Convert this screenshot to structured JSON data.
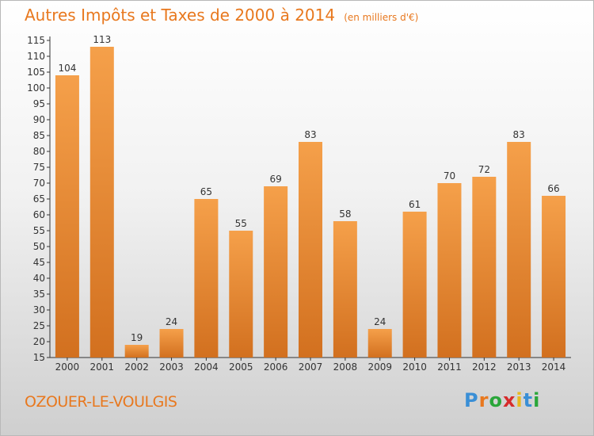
{
  "title": "Autres Impôts et Taxes de 2000 à 2014",
  "subtitle": "(en milliers d'€)",
  "place": "OZOUER-LE-VOULGIS",
  "logo": {
    "letters": [
      "P",
      "r",
      "o",
      "x",
      "i",
      "t",
      "i"
    ],
    "colors": [
      "#3a8fd6",
      "#e8781e",
      "#2aa63a",
      "#d62b2b",
      "#e8b81e",
      "#3a8fd6",
      "#2aa63a"
    ]
  },
  "colors": {
    "bar_light": "#f5a04a",
    "bar_dark": "#d2701f",
    "text": "#e8781e",
    "axis": "#333333"
  },
  "chart_data": {
    "type": "bar",
    "categories": [
      "2000",
      "2001",
      "2002",
      "2003",
      "2004",
      "2005",
      "2006",
      "2007",
      "2008",
      "2009",
      "2010",
      "2011",
      "2012",
      "2013",
      "2014"
    ],
    "values": [
      104,
      113,
      19,
      24,
      65,
      55,
      69,
      83,
      58,
      24,
      61,
      70,
      72,
      83,
      66
    ],
    "ylim": [
      15,
      115
    ],
    "yticks": [
      15,
      20,
      25,
      30,
      35,
      40,
      45,
      50,
      55,
      60,
      65,
      70,
      75,
      80,
      85,
      90,
      95,
      100,
      105,
      110,
      115
    ],
    "grid": false,
    "xlabel": "",
    "ylabel": ""
  }
}
